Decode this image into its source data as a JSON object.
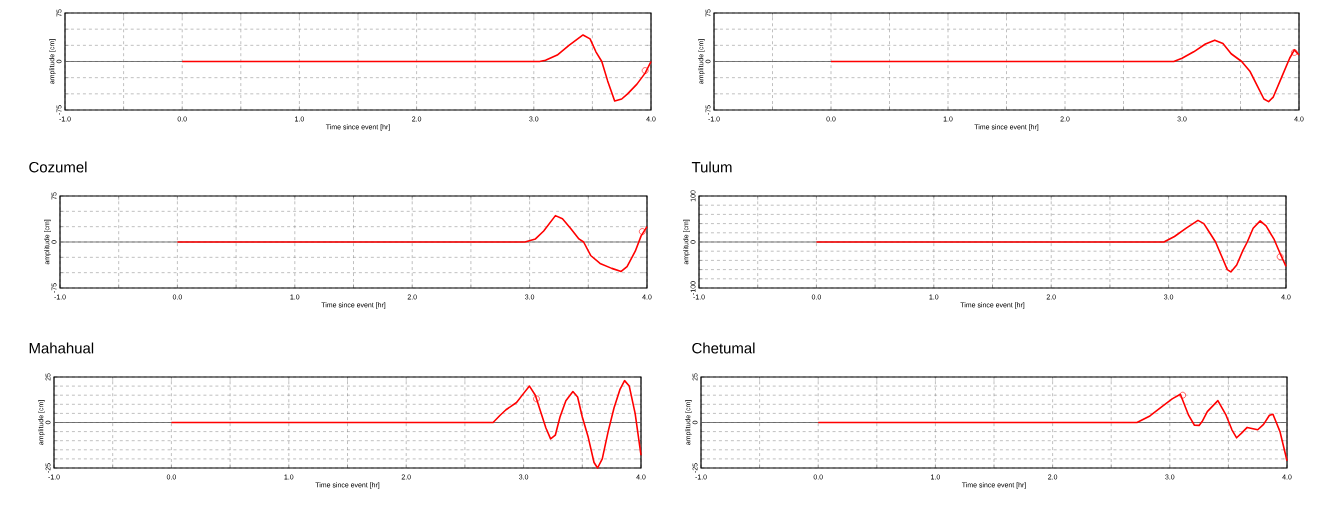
{
  "chart_data": [
    {
      "type": "line",
      "xlabel": "Time since event [hr]",
      "ylabel": "amplitude [cm]",
      "xlim": [
        -1,
        4
      ],
      "ylim": [
        -75,
        75
      ],
      "grid": true,
      "marker": "none",
      "xticks": [
        {
          "value": -1,
          "label": "-1.0"
        },
        {
          "value": -0.5,
          "label": null
        },
        {
          "value": 0,
          "label": "0.0"
        },
        {
          "value": 0.5,
          "label": null
        },
        {
          "value": 1,
          "label": "1.0"
        },
        {
          "value": 1.5,
          "label": null
        },
        {
          "value": 2,
          "label": "2.0"
        },
        {
          "value": 2.5,
          "label": null
        },
        {
          "value": 3,
          "label": "3.0"
        },
        {
          "value": 3.5,
          "label": null
        },
        {
          "value": 4,
          "label": "4.0"
        }
      ],
      "yticks": [
        -75,
        {
          "value": -50,
          "label": null
        },
        {
          "value": -25,
          "label": null
        },
        0,
        {
          "value": 25,
          "label": null
        },
        {
          "value": 50,
          "label": null
        },
        75
      ],
      "ref_lines": [
        {
          "axis": "y",
          "value": 0,
          "color": "#555555"
        }
      ],
      "series": [
        {
          "color": "#ff0000",
          "x": [
            0,
            3.05,
            3.1,
            3.2,
            3.3,
            3.42,
            3.48,
            3.53,
            3.58,
            3.63,
            3.69,
            3.75,
            3.8,
            3.88,
            3.95,
            4.0
          ],
          "values": [
            0,
            0,
            2,
            10,
            25,
            41,
            35,
            15,
            0,
            -30,
            -61,
            -58,
            -50,
            -35,
            -18,
            0
          ]
        },
        {
          "type": "scatter",
          "marker": "circle",
          "color": "#ff0000",
          "x": [
            3.95
          ],
          "values": [
            -14
          ]
        }
      ]
    },
    {
      "type": "line",
      "xlabel": "Time since event [hr]",
      "ylabel": "amplitude [cm]",
      "xlim": [
        -1,
        4
      ],
      "ylim": [
        -75,
        75
      ],
      "grid": true,
      "marker": "none",
      "xticks": [
        {
          "value": -1,
          "label": "-1.0"
        },
        {
          "value": -0.5,
          "label": null
        },
        {
          "value": 0,
          "label": "0.0"
        },
        {
          "value": 0.5,
          "label": null
        },
        {
          "value": 1,
          "label": "1.0"
        },
        {
          "value": 1.5,
          "label": null
        },
        {
          "value": 2,
          "label": "2.0"
        },
        {
          "value": 2.5,
          "label": null
        },
        {
          "value": 3,
          "label": "3.0"
        },
        {
          "value": 3.5,
          "label": null
        },
        {
          "value": 4,
          "label": "4.0"
        }
      ],
      "yticks": [
        -75,
        {
          "value": -50,
          "label": null
        },
        {
          "value": -25,
          "label": null
        },
        0,
        {
          "value": 25,
          "label": null
        },
        {
          "value": 50,
          "label": null
        },
        75
      ],
      "ref_lines": [
        {
          "axis": "y",
          "value": 0,
          "color": "#555555"
        }
      ],
      "series": [
        {
          "color": "#ff0000",
          "x": [
            0,
            2.93,
            3.0,
            3.1,
            3.2,
            3.28,
            3.35,
            3.42,
            3.51,
            3.58,
            3.65,
            3.7,
            3.74,
            3.78,
            3.85,
            3.92,
            3.96,
            4.0
          ],
          "values": [
            0,
            0,
            5,
            15,
            27,
            33,
            28,
            12,
            0,
            -15,
            -40,
            -58,
            -62,
            -55,
            -25,
            5,
            18,
            10
          ]
        },
        {
          "type": "scatter",
          "marker": "circle",
          "color": "#ff0000",
          "x": [
            3.96
          ],
          "values": [
            14
          ]
        }
      ]
    },
    {
      "type": "line",
      "title": "Cozumel",
      "xlabel": "Time since event [hr]",
      "ylabel": "amplitude [cm]",
      "xlim": [
        -1,
        4
      ],
      "ylim": [
        -75,
        75
      ],
      "grid": true,
      "marker": "none",
      "xticks": [
        {
          "value": -1,
          "label": "-1.0"
        },
        {
          "value": -0.5,
          "label": null
        },
        {
          "value": 0,
          "label": "0.0"
        },
        {
          "value": 0.5,
          "label": null
        },
        {
          "value": 1,
          "label": "1.0"
        },
        {
          "value": 1.5,
          "label": null
        },
        {
          "value": 2,
          "label": "2.0"
        },
        {
          "value": 2.5,
          "label": null
        },
        {
          "value": 3,
          "label": "3.0"
        },
        {
          "value": 3.5,
          "label": null
        },
        {
          "value": 4,
          "label": "4.0"
        }
      ],
      "yticks": [
        -75,
        {
          "value": -50,
          "label": null
        },
        {
          "value": -25,
          "label": null
        },
        0,
        {
          "value": 25,
          "label": null
        },
        {
          "value": 50,
          "label": null
        },
        75
      ],
      "ref_lines": [
        {
          "axis": "y",
          "value": 0,
          "color": "#555555"
        }
      ],
      "series": [
        {
          "color": "#ff0000",
          "x": [
            0,
            2.96,
            3.05,
            3.12,
            3.22,
            3.28,
            3.35,
            3.42,
            3.46,
            3.52,
            3.6,
            3.7,
            3.78,
            3.83,
            3.9,
            3.95,
            4.0
          ],
          "values": [
            0,
            0,
            5,
            18,
            43,
            38,
            22,
            5,
            0,
            -22,
            -35,
            -43,
            -48,
            -40,
            -15,
            10,
            25
          ]
        },
        {
          "type": "scatter",
          "marker": "circle",
          "color": "#ff0000",
          "x": [
            3.96
          ],
          "values": [
            17
          ]
        }
      ]
    },
    {
      "type": "line",
      "title": "Tulum",
      "xlabel": "Time since event [hr]",
      "ylabel": "amplitude [cm]",
      "xlim": [
        -1,
        4
      ],
      "ylim": [
        -100,
        100
      ],
      "grid": true,
      "marker": "none",
      "xticks": [
        {
          "value": -1,
          "label": "-1.0"
        },
        {
          "value": -0.5,
          "label": null
        },
        {
          "value": 0,
          "label": "0.0"
        },
        {
          "value": 0.5,
          "label": null
        },
        {
          "value": 1,
          "label": "1.0"
        },
        {
          "value": 1.5,
          "label": null
        },
        {
          "value": 2,
          "label": "2.0"
        },
        {
          "value": 2.5,
          "label": null
        },
        {
          "value": 3,
          "label": "3.0"
        },
        {
          "value": 3.5,
          "label": null
        },
        {
          "value": 4,
          "label": "4.0"
        }
      ],
      "yticks": [
        -100,
        {
          "value": -80,
          "label": null
        },
        {
          "value": -60,
          "label": null
        },
        {
          "value": -40,
          "label": null
        },
        {
          "value": -20,
          "label": null
        },
        0,
        {
          "value": 20,
          "label": null
        },
        {
          "value": 40,
          "label": null
        },
        {
          "value": 60,
          "label": null
        },
        {
          "value": 80,
          "label": null
        },
        100
      ],
      "ref_lines": [
        {
          "axis": "y",
          "value": 0,
          "color": "#555555"
        }
      ],
      "series": [
        {
          "color": "#ff0000",
          "x": [
            0,
            2.96,
            3.05,
            3.15,
            3.25,
            3.3,
            3.35,
            3.4,
            3.45,
            3.5,
            3.53,
            3.58,
            3.63,
            3.67,
            3.72,
            3.78,
            3.83,
            3.9,
            3.95,
            4.0
          ],
          "values": [
            0,
            0,
            12,
            30,
            47,
            40,
            20,
            0,
            -30,
            -60,
            -65,
            -50,
            -20,
            0,
            30,
            46,
            35,
            5,
            -25,
            -53
          ]
        },
        {
          "type": "scatter",
          "marker": "circle",
          "color": "#ff0000",
          "x": [
            3.95
          ],
          "values": [
            -32
          ]
        }
      ]
    },
    {
      "type": "line",
      "title": "Mahahual",
      "xlabel": "Time since event [hr]",
      "ylabel": "amplitude [cm]",
      "xlim": [
        -1,
        4
      ],
      "ylim": [
        -25,
        25
      ],
      "grid": true,
      "marker": "none",
      "xticks": [
        {
          "value": -1,
          "label": "-1.0"
        },
        {
          "value": -0.5,
          "label": null
        },
        {
          "value": 0,
          "label": "0.0"
        },
        {
          "value": 0.5,
          "label": null
        },
        {
          "value": 1,
          "label": "1.0"
        },
        {
          "value": 1.5,
          "label": null
        },
        {
          "value": 2,
          "label": "2.0"
        },
        {
          "value": 2.5,
          "label": null
        },
        {
          "value": 3,
          "label": "3.0"
        },
        {
          "value": 3.5,
          "label": null
        },
        {
          "value": 4,
          "label": "4.0"
        }
      ],
      "yticks": [
        -25,
        {
          "value": -20,
          "label": null
        },
        {
          "value": -15,
          "label": null
        },
        {
          "value": -10,
          "label": null
        },
        {
          "value": -5,
          "label": null
        },
        0,
        {
          "value": 5,
          "label": null
        },
        {
          "value": 10,
          "label": null
        },
        {
          "value": 15,
          "label": null
        },
        {
          "value": 20,
          "label": null
        },
        25
      ],
      "ref_lines": [
        {
          "axis": "y",
          "value": 0,
          "color": "#555555"
        }
      ],
      "series": [
        {
          "color": "#ff0000",
          "x": [
            0,
            2.74,
            2.8,
            2.85,
            2.94,
            3.0,
            3.05,
            3.1,
            3.15,
            3.19,
            3.23,
            3.27,
            3.31,
            3.36,
            3.42,
            3.46,
            3.5,
            3.55,
            3.6,
            3.63,
            3.67,
            3.72,
            3.77,
            3.82,
            3.86,
            3.9,
            3.95,
            4.0
          ],
          "values": [
            0,
            0,
            4,
            7,
            11,
            16,
            20,
            15,
            5,
            -3,
            -9,
            -7,
            3,
            12,
            17,
            14,
            3,
            -8,
            -22,
            -25,
            -20,
            -5,
            8,
            18,
            23,
            20,
            5,
            -18
          ]
        },
        {
          "type": "scatter",
          "marker": "circle",
          "color": "#ff0000",
          "x": [
            3.11
          ],
          "values": [
            13
          ]
        }
      ]
    },
    {
      "type": "line",
      "title": "Chetumal",
      "xlabel": "Time since event [hr]",
      "ylabel": "amplitude [cm]",
      "xlim": [
        -1,
        4
      ],
      "ylim": [
        -25,
        25
      ],
      "grid": true,
      "marker": "none",
      "xticks": [
        {
          "value": -1,
          "label": "-1.0"
        },
        {
          "value": -0.5,
          "label": null
        },
        {
          "value": 0,
          "label": "0.0"
        },
        {
          "value": 0.5,
          "label": null
        },
        {
          "value": 1,
          "label": "1.0"
        },
        {
          "value": 1.5,
          "label": null
        },
        {
          "value": 2,
          "label": "2.0"
        },
        {
          "value": 2.5,
          "label": null
        },
        {
          "value": 3,
          "label": "3.0"
        },
        {
          "value": 3.5,
          "label": null
        },
        {
          "value": 4,
          "label": "4.0"
        }
      ],
      "yticks": [
        -25,
        {
          "value": -20,
          "label": null
        },
        {
          "value": -15,
          "label": null
        },
        {
          "value": -10,
          "label": null
        },
        {
          "value": -5,
          "label": null
        },
        0,
        {
          "value": 5,
          "label": null
        },
        {
          "value": 10,
          "label": null
        },
        {
          "value": 15,
          "label": null
        },
        {
          "value": 20,
          "label": null
        },
        25
      ],
      "ref_lines": [
        {
          "axis": "y",
          "value": 0,
          "color": "#555555"
        }
      ],
      "series": [
        {
          "color": "#ff0000",
          "x": [
            0,
            2.72,
            2.83,
            2.93,
            3.02,
            3.09,
            3.16,
            3.21,
            3.25,
            3.28,
            3.32,
            3.41,
            3.48,
            3.53,
            3.57,
            3.61,
            3.66,
            3.75,
            3.8,
            3.85,
            3.88,
            3.94,
            4.0
          ],
          "values": [
            0,
            0,
            3.6,
            8.6,
            13,
            15.5,
            4,
            -1.5,
            -1.6,
            1,
            6,
            12,
            4,
            -4,
            -8.4,
            -6,
            -2.7,
            -4,
            -1,
            4,
            4.5,
            -5,
            -21
          ]
        },
        {
          "type": "scatter",
          "marker": "circle",
          "color": "#ff0000",
          "x": [
            3.11
          ],
          "values": [
            15
          ]
        }
      ]
    }
  ]
}
